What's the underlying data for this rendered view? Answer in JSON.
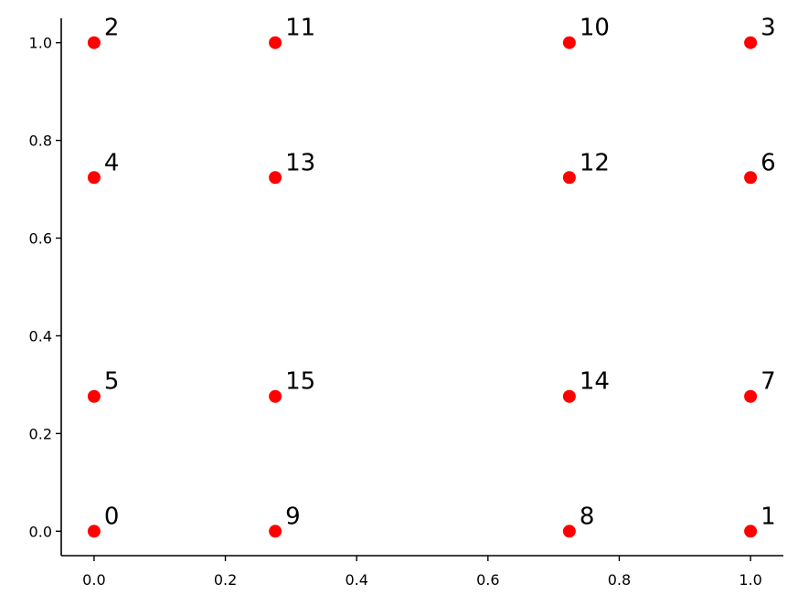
{
  "chart_data": {
    "type": "scatter",
    "title": "",
    "xlabel": "",
    "ylabel": "",
    "xlim": [
      -0.05,
      1.05
    ],
    "ylim": [
      -0.05,
      1.05
    ],
    "xticks": [
      "0.0",
      "0.2",
      "0.4",
      "0.6",
      "0.8",
      "1.0"
    ],
    "yticks": [
      "0.0",
      "0.2",
      "0.4",
      "0.6",
      "0.8",
      "1.0"
    ],
    "grid": false,
    "legend": "none",
    "point_color": "#ff0000",
    "points": [
      {
        "label": "0",
        "x": 0.0,
        "y": 0.0
      },
      {
        "label": "1",
        "x": 1.0,
        "y": 0.0
      },
      {
        "label": "2",
        "x": 0.0,
        "y": 1.0
      },
      {
        "label": "3",
        "x": 1.0,
        "y": 1.0
      },
      {
        "label": "4",
        "x": 0.0,
        "y": 0.724
      },
      {
        "label": "5",
        "x": 0.0,
        "y": 0.276
      },
      {
        "label": "6",
        "x": 1.0,
        "y": 0.724
      },
      {
        "label": "7",
        "x": 1.0,
        "y": 0.276
      },
      {
        "label": "8",
        "x": 0.724,
        "y": 0.0
      },
      {
        "label": "9",
        "x": 0.276,
        "y": 0.0
      },
      {
        "label": "10",
        "x": 0.724,
        "y": 1.0
      },
      {
        "label": "11",
        "x": 0.276,
        "y": 1.0
      },
      {
        "label": "12",
        "x": 0.724,
        "y": 0.724
      },
      {
        "label": "13",
        "x": 0.276,
        "y": 0.724
      },
      {
        "label": "14",
        "x": 0.724,
        "y": 0.276
      },
      {
        "label": "15",
        "x": 0.276,
        "y": 0.276
      }
    ]
  }
}
